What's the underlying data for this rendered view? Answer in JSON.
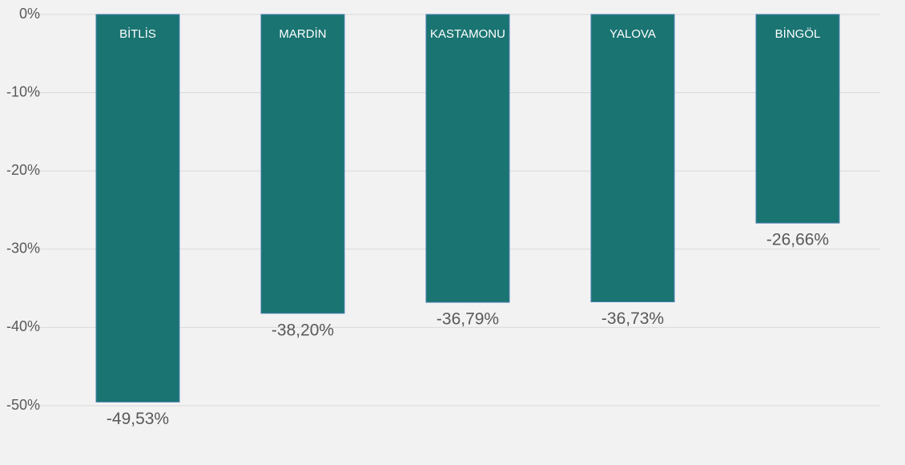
{
  "chart_data": {
    "type": "bar",
    "categories": [
      "BİTLİS",
      "MARDİN",
      "KASTAMONU",
      "YALOVA",
      "BİNGÖL"
    ],
    "values": [
      -49.53,
      -38.2,
      -36.79,
      -36.73,
      -26.66
    ],
    "value_labels": [
      "-49,53%",
      "-38,20%",
      "-36,79%",
      "-36,73%",
      "-26,66%"
    ],
    "color": "#1a7472",
    "ylim": [
      -50,
      0
    ],
    "yticks": [
      {
        "value": 0,
        "label": "0%"
      },
      {
        "value": -10,
        "label": "-10%"
      },
      {
        "value": -20,
        "label": "-20%"
      },
      {
        "value": -30,
        "label": "-30%"
      },
      {
        "value": -40,
        "label": "-40%"
      },
      {
        "value": -50,
        "label": "-50%"
      }
    ],
    "grid": true
  }
}
